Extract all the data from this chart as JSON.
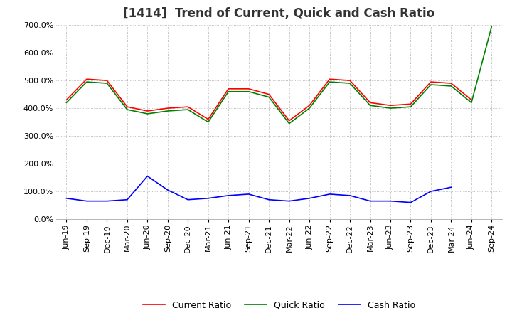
{
  "title": "[1414]  Trend of Current, Quick and Cash Ratio",
  "x_labels": [
    "Jun-19",
    "Sep-19",
    "Dec-19",
    "Mar-20",
    "Jun-20",
    "Sep-20",
    "Dec-20",
    "Mar-21",
    "Jun-21",
    "Sep-21",
    "Dec-21",
    "Mar-22",
    "Jun-22",
    "Sep-22",
    "Dec-22",
    "Mar-23",
    "Jun-23",
    "Sep-23",
    "Dec-23",
    "Mar-24",
    "Jun-24",
    "Sep-24"
  ],
  "current_ratio": [
    430,
    505,
    500,
    405,
    390,
    400,
    405,
    360,
    470,
    470,
    450,
    355,
    410,
    505,
    500,
    420,
    410,
    415,
    495,
    490,
    430,
    null
  ],
  "quick_ratio": [
    420,
    495,
    490,
    395,
    380,
    390,
    395,
    350,
    460,
    460,
    440,
    345,
    400,
    495,
    490,
    410,
    400,
    405,
    485,
    480,
    420,
    695
  ],
  "cash_ratio": [
    75,
    65,
    65,
    70,
    155,
    105,
    70,
    75,
    85,
    90,
    70,
    65,
    75,
    90,
    85,
    65,
    65,
    60,
    100,
    115,
    null,
    null
  ],
  "current_color": "#ff0000",
  "quick_color": "#008000",
  "cash_color": "#0000ff",
  "ylim": [
    0,
    700
  ],
  "yticks": [
    0,
    100,
    200,
    300,
    400,
    500,
    600,
    700
  ],
  "background_color": "#ffffff",
  "plot_bg_color": "#ffffff",
  "grid_color": "#aaaaaa",
  "title_fontsize": 12,
  "axis_fontsize": 8,
  "legend_fontsize": 9
}
